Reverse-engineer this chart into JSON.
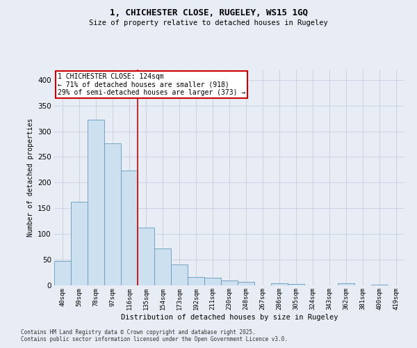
{
  "title": "1, CHICHESTER CLOSE, RUGELEY, WS15 1GQ",
  "subtitle": "Size of property relative to detached houses in Rugeley",
  "xlabel": "Distribution of detached houses by size in Rugeley",
  "ylabel": "Number of detached properties",
  "categories": [
    "40sqm",
    "59sqm",
    "78sqm",
    "97sqm",
    "116sqm",
    "135sqm",
    "154sqm",
    "173sqm",
    "192sqm",
    "211sqm",
    "230sqm",
    "248sqm",
    "267sqm",
    "286sqm",
    "305sqm",
    "324sqm",
    "343sqm",
    "362sqm",
    "381sqm",
    "400sqm",
    "419sqm"
  ],
  "values": [
    48,
    162,
    323,
    277,
    224,
    112,
    72,
    40,
    16,
    15,
    9,
    7,
    0,
    4,
    3,
    0,
    0,
    4,
    0,
    2,
    0
  ],
  "bar_color": "#cce0f0",
  "bar_edge_color": "#6699bb",
  "grid_color": "#c5cfe0",
  "background_color": "#e8edf5",
  "annotation_text_line1": "1 CHICHESTER CLOSE: 124sqm",
  "annotation_text_line2": "← 71% of detached houses are smaller (918)",
  "annotation_text_line3": "29% of semi-detached houses are larger (373) →",
  "annotation_box_color": "#ffffff",
  "annotation_box_edge": "#cc0000",
  "vline_color": "#cc0000",
  "footnote1": "Contains HM Land Registry data © Crown copyright and database right 2025.",
  "footnote2": "Contains public sector information licensed under the Open Government Licence v3.0.",
  "ylim": [
    0,
    420
  ],
  "yticks": [
    0,
    50,
    100,
    150,
    200,
    250,
    300,
    350,
    400
  ],
  "vline_x": 4.5
}
